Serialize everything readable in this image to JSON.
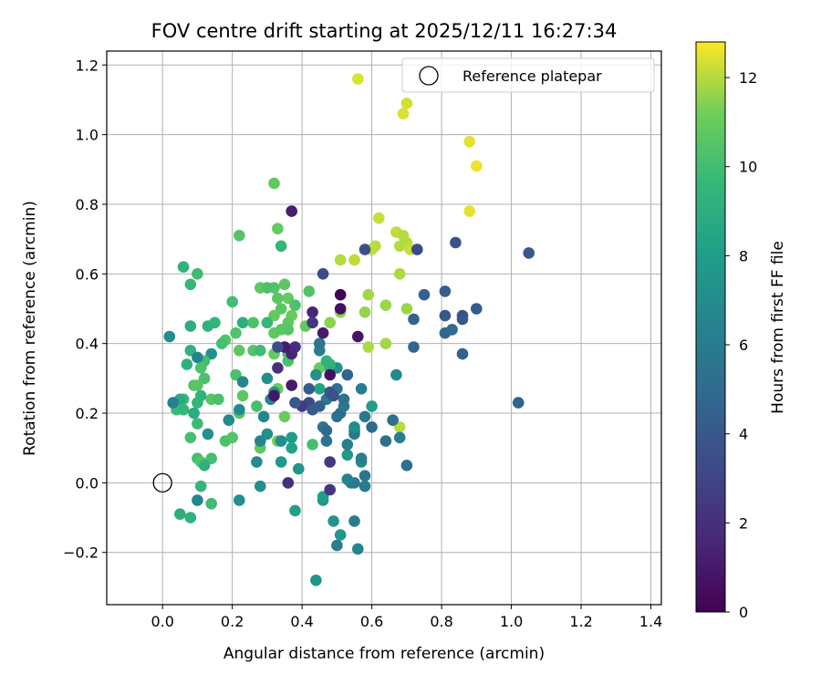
{
  "chart_data": {
    "type": "scatter",
    "title": "FOV centre drift starting at 2025/12/11 16:27:34",
    "xlabel": "Angular distance from reference (arcmin)",
    "ylabel": "Rotation from reference (arcmin)",
    "xlim": [
      -0.16,
      1.43
    ],
    "ylim": [
      -0.35,
      1.24
    ],
    "xticks": [
      "0.0",
      "0.2",
      "0.4",
      "0.6",
      "0.8",
      "1.0",
      "1.2",
      "1.4"
    ],
    "yticks": [
      "−0.2",
      "0.0",
      "0.2",
      "0.4",
      "0.6",
      "0.8",
      "1.0",
      "1.2"
    ],
    "grid": true,
    "legend": {
      "position": "top-right",
      "entries": [
        "Reference platepar"
      ]
    },
    "reference": {
      "x": 0.0,
      "y": 0.0
    },
    "colorbar": {
      "label": "Hours from first FF file",
      "range": [
        0,
        12.8
      ],
      "ticks": [
        "0",
        "2",
        "4",
        "6",
        "8",
        "10",
        "12"
      ],
      "colormap": "viridis"
    },
    "series": [
      {
        "points": [
          [
            0.56,
            1.16,
            12.4
          ],
          [
            0.7,
            1.09,
            12.3
          ],
          [
            0.69,
            1.06,
            12.4
          ],
          [
            0.88,
            0.98,
            12.5
          ],
          [
            0.9,
            0.91,
            12.6
          ],
          [
            0.88,
            0.78,
            12.5
          ],
          [
            0.62,
            0.76,
            12.2
          ],
          [
            0.67,
            0.72,
            12.1
          ],
          [
            0.69,
            0.71,
            12.0
          ],
          [
            0.7,
            0.69,
            12.0
          ],
          [
            0.68,
            0.68,
            12.0
          ],
          [
            0.61,
            0.68,
            12.0
          ],
          [
            0.6,
            0.67,
            12.1
          ],
          [
            0.71,
            0.67,
            12.2
          ],
          [
            0.51,
            0.64,
            12.0
          ],
          [
            0.55,
            0.64,
            12.1
          ],
          [
            0.68,
            0.6,
            11.9
          ],
          [
            0.59,
            0.54,
            11.8
          ],
          [
            0.64,
            0.51,
            11.7
          ],
          [
            0.7,
            0.5,
            11.7
          ],
          [
            0.58,
            0.49,
            11.6
          ],
          [
            0.51,
            0.49,
            11.5
          ],
          [
            0.48,
            0.46,
            11.5
          ],
          [
            0.59,
            0.39,
            11.9
          ],
          [
            0.64,
            0.4,
            11.8
          ],
          [
            0.68,
            0.16,
            12.0
          ],
          [
            0.32,
            0.86,
            10.8
          ],
          [
            0.33,
            0.73,
            10.9
          ],
          [
            0.22,
            0.71,
            10.5
          ],
          [
            0.34,
            0.68,
            9.5
          ],
          [
            0.06,
            0.62,
            9.3
          ],
          [
            0.1,
            0.6,
            9.9
          ],
          [
            0.08,
            0.57,
            9.6
          ],
          [
            0.32,
            0.56,
            10.4
          ],
          [
            0.35,
            0.57,
            10.7
          ],
          [
            0.36,
            0.53,
            10.9
          ],
          [
            0.33,
            0.53,
            10.6
          ],
          [
            0.38,
            0.51,
            10.3
          ],
          [
            0.42,
            0.55,
            10.4
          ],
          [
            0.37,
            0.48,
            11.0
          ],
          [
            0.28,
            0.56,
            10.7
          ],
          [
            0.3,
            0.56,
            10.3
          ],
          [
            0.2,
            0.52,
            10.0
          ],
          [
            0.34,
            0.5,
            10.6
          ],
          [
            0.32,
            0.48,
            10.9
          ],
          [
            0.36,
            0.46,
            10.8
          ],
          [
            0.3,
            0.46,
            9.6
          ],
          [
            0.23,
            0.46,
            9.0
          ],
          [
            0.26,
            0.46,
            10.3
          ],
          [
            0.32,
            0.43,
            10.8
          ],
          [
            0.34,
            0.44,
            10.7
          ],
          [
            0.36,
            0.44,
            10.5
          ],
          [
            0.41,
            0.45,
            10.9
          ],
          [
            0.15,
            0.46,
            9.5
          ],
          [
            0.13,
            0.45,
            9.3
          ],
          [
            0.08,
            0.45,
            9.0
          ],
          [
            0.21,
            0.43,
            10.4
          ],
          [
            0.18,
            0.41,
            10.4
          ],
          [
            0.17,
            0.4,
            10.1
          ],
          [
            0.26,
            0.38,
            10.5
          ],
          [
            0.22,
            0.38,
            10.7
          ],
          [
            0.28,
            0.38,
            9.9
          ],
          [
            0.36,
            0.37,
            10.1
          ],
          [
            0.32,
            0.37,
            10.9
          ],
          [
            0.14,
            0.37,
            7.2
          ],
          [
            0.08,
            0.38,
            9.3
          ],
          [
            0.12,
            0.35,
            10.0
          ],
          [
            0.1,
            0.36,
            6.6
          ],
          [
            0.11,
            0.33,
            10.3
          ],
          [
            0.07,
            0.34,
            9.2
          ],
          [
            0.36,
            0.35,
            10.2
          ],
          [
            0.45,
            0.33,
            10.9
          ],
          [
            0.48,
            0.33,
            9.0
          ],
          [
            0.12,
            0.3,
            10.2
          ],
          [
            0.09,
            0.28,
            10.4
          ],
          [
            0.1,
            0.28,
            10.6
          ],
          [
            0.21,
            0.31,
            10.2
          ],
          [
            0.33,
            0.27,
            11.0
          ],
          [
            0.11,
            0.25,
            9.3
          ],
          [
            0.23,
            0.25,
            10.7
          ],
          [
            0.14,
            0.24,
            10.6
          ],
          [
            0.16,
            0.24,
            10.2
          ],
          [
            0.06,
            0.24,
            9.7
          ],
          [
            0.05,
            0.24,
            8.8
          ],
          [
            0.04,
            0.21,
            9.8
          ],
          [
            0.06,
            0.21,
            9.5
          ],
          [
            0.22,
            0.2,
            10.6
          ],
          [
            0.1,
            0.23,
            9.5
          ],
          [
            0.09,
            0.2,
            8.8
          ],
          [
            0.27,
            0.22,
            10.1
          ],
          [
            0.35,
            0.19,
            11.0
          ],
          [
            0.1,
            0.17,
            9.8
          ],
          [
            0.18,
            0.12,
            10.3
          ],
          [
            0.2,
            0.13,
            10.4
          ],
          [
            0.08,
            0.13,
            10.1
          ],
          [
            0.33,
            0.12,
            11.2
          ],
          [
            0.28,
            0.1,
            10.8
          ],
          [
            0.43,
            0.11,
            10.1
          ],
          [
            0.1,
            0.07,
            10.0
          ],
          [
            0.11,
            0.06,
            10.4
          ],
          [
            0.14,
            0.07,
            10.1
          ],
          [
            0.12,
            0.05,
            9.2
          ],
          [
            0.11,
            -0.01,
            9.5
          ],
          [
            0.14,
            -0.06,
            9.9
          ],
          [
            0.05,
            -0.09,
            9.0
          ],
          [
            0.08,
            -0.1,
            9.3
          ],
          [
            0.02,
            0.42,
            7.0
          ],
          [
            0.03,
            0.23,
            6.3
          ],
          [
            0.1,
            -0.05,
            6.6
          ],
          [
            0.22,
            -0.05,
            7.2
          ],
          [
            0.13,
            0.14,
            7.3
          ],
          [
            0.19,
            0.18,
            6.9
          ],
          [
            0.22,
            0.21,
            6.9
          ],
          [
            0.23,
            0.29,
            6.7
          ],
          [
            0.28,
            0.12,
            6.5
          ],
          [
            0.3,
            0.14,
            7.2
          ],
          [
            0.34,
            0.12,
            7.0
          ],
          [
            0.37,
            0.13,
            7.9
          ],
          [
            0.37,
            0.1,
            8.3
          ],
          [
            0.31,
            0.24,
            6.6
          ],
          [
            0.29,
            0.19,
            6.6
          ],
          [
            0.3,
            0.3,
            7.0
          ],
          [
            0.32,
            0.26,
            7.2
          ],
          [
            0.27,
            0.06,
            6.9
          ],
          [
            0.34,
            0.06,
            7.7
          ],
          [
            0.28,
            -0.01,
            7.1
          ],
          [
            0.39,
            0.04,
            7.5
          ],
          [
            0.38,
            -0.08,
            8.1
          ],
          [
            0.44,
            -0.28,
            7.6
          ],
          [
            0.46,
            -0.05,
            7.6
          ],
          [
            0.46,
            -0.04,
            8.0
          ],
          [
            0.49,
            -0.11,
            7.4
          ],
          [
            0.5,
            -0.18,
            6.1
          ],
          [
            0.51,
            -0.15,
            7.6
          ],
          [
            0.56,
            -0.19,
            6.5
          ],
          [
            0.55,
            -0.11,
            6.0
          ],
          [
            0.54,
            0.0,
            6.5
          ],
          [
            0.55,
            0.0,
            6.0
          ],
          [
            0.53,
            0.01,
            6.4
          ],
          [
            0.58,
            0.02,
            5.6
          ],
          [
            0.58,
            -0.01,
            6.0
          ],
          [
            0.57,
            0.06,
            6.8
          ],
          [
            0.57,
            0.07,
            6.2
          ],
          [
            0.53,
            0.08,
            7.7
          ],
          [
            0.53,
            0.11,
            6.1
          ],
          [
            0.55,
            0.14,
            6.0
          ],
          [
            0.55,
            0.15,
            5.6
          ],
          [
            0.55,
            0.16,
            7.0
          ],
          [
            0.6,
            0.16,
            4.9
          ],
          [
            0.6,
            0.22,
            8.0
          ],
          [
            0.58,
            0.19,
            5.9
          ],
          [
            0.57,
            0.27,
            6.1
          ],
          [
            0.53,
            0.31,
            4.5
          ],
          [
            0.51,
            0.2,
            5.1
          ],
          [
            0.52,
            0.22,
            5.8
          ],
          [
            0.52,
            0.24,
            5.5
          ],
          [
            0.5,
            0.27,
            5.5
          ],
          [
            0.5,
            0.33,
            7.3
          ],
          [
            0.48,
            0.34,
            9.2
          ],
          [
            0.47,
            0.35,
            9.3
          ],
          [
            0.45,
            0.38,
            5.9
          ],
          [
            0.45,
            0.4,
            5.6
          ],
          [
            0.45,
            0.27,
            8.3
          ],
          [
            0.47,
            0.24,
            5.8
          ],
          [
            0.48,
            0.26,
            3.8
          ],
          [
            0.46,
            0.16,
            5.8
          ],
          [
            0.47,
            0.15,
            4.8
          ],
          [
            0.47,
            0.12,
            5.6
          ],
          [
            0.5,
            0.19,
            5.2
          ],
          [
            0.45,
            0.22,
            4.3
          ],
          [
            0.42,
            0.23,
            3.2
          ],
          [
            0.4,
            0.22,
            2.5
          ],
          [
            0.43,
            0.21,
            4.2
          ],
          [
            0.42,
            0.27,
            4.2
          ],
          [
            0.44,
            0.31,
            7.2
          ],
          [
            0.38,
            0.23,
            4.0
          ],
          [
            0.37,
            0.37,
            1.5
          ],
          [
            0.38,
            0.39,
            1.9
          ],
          [
            0.35,
            0.39,
            1.0
          ],
          [
            0.33,
            0.39,
            3.4
          ],
          [
            0.43,
            0.49,
            1.5
          ],
          [
            0.46,
            0.43,
            1.0
          ],
          [
            0.43,
            0.46,
            2.3
          ],
          [
            0.37,
            0.28,
            1.0
          ],
          [
            0.32,
            0.25,
            0.8
          ],
          [
            0.33,
            0.33,
            2.0
          ],
          [
            0.36,
            0.0,
            2.0
          ],
          [
            0.48,
            0.06,
            2.4
          ],
          [
            0.48,
            -0.02,
            2.3
          ],
          [
            0.48,
            0.31,
            0.6
          ],
          [
            0.49,
            0.25,
            3.6
          ],
          [
            0.51,
            0.5,
            0.6
          ],
          [
            0.51,
            0.54,
            0.0
          ],
          [
            0.56,
            0.42,
            0.8
          ],
          [
            0.37,
            0.78,
            1.1
          ],
          [
            0.46,
            0.6,
            3.3
          ],
          [
            0.58,
            0.67,
            3.5
          ],
          [
            0.73,
            0.67,
            3.3
          ],
          [
            0.84,
            0.69,
            3.7
          ],
          [
            1.05,
            0.66,
            4.0
          ],
          [
            0.75,
            0.54,
            4.5
          ],
          [
            0.81,
            0.55,
            4.3
          ],
          [
            0.81,
            0.48,
            3.9
          ],
          [
            0.86,
            0.48,
            3.6
          ],
          [
            0.86,
            0.47,
            3.9
          ],
          [
            0.9,
            0.5,
            4.1
          ],
          [
            0.72,
            0.47,
            4.6
          ],
          [
            0.81,
            0.43,
            4.7
          ],
          [
            0.83,
            0.44,
            5.0
          ],
          [
            0.72,
            0.39,
            4.7
          ],
          [
            0.86,
            0.37,
            4.5
          ],
          [
            0.67,
            0.31,
            6.8
          ],
          [
            1.02,
            0.23,
            4.5
          ],
          [
            0.66,
            0.18,
            5.1
          ],
          [
            0.68,
            0.13,
            6.0
          ],
          [
            0.64,
            0.12,
            5.2
          ],
          [
            0.7,
            0.05,
            5.3
          ]
        ]
      }
    ]
  }
}
